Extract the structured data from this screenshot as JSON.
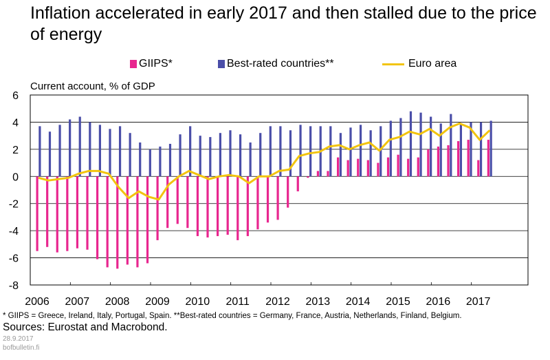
{
  "title": "Inflation accelerated in early 2017 and then stalled due to the price of energy",
  "footnote": "* GIIPS = Greece, Ireland, Italy, Portugal, Spain. **Best-rated countries = Germany, France, Austria, Netherlands, Finland, Belgium.",
  "sources": "Sources: Eurostat and Macrobond.",
  "date": "28.9.2017",
  "site": "bofbulletin.fi",
  "colors": {
    "giips": "#e8268f",
    "best": "#4a4ea8",
    "euro": "#f2c40e"
  },
  "chart_data": {
    "type": "bar",
    "title": "Inflation accelerated in early 2017 and then stalled due to the price of energy",
    "ylabel": "Current account, % of GDP",
    "xlabel": "",
    "ylim": [
      -8,
      6
    ],
    "yticks": [
      6,
      4,
      2,
      0,
      -2,
      -4,
      -6,
      -8
    ],
    "xlim": [
      2006.0,
      2018.0
    ],
    "xticks": [
      "2006",
      "2007",
      "2008",
      "2009",
      "2010",
      "2011",
      "2012",
      "2013",
      "2014",
      "2015",
      "2016",
      "2017"
    ],
    "grid": "horizontal",
    "legend": "top",
    "series": [
      {
        "name": "GIIPS*",
        "type": "bar",
        "x": [
          2006.0,
          2006.25,
          2006.5,
          2006.75,
          2007.0,
          2007.25,
          2007.5,
          2007.75,
          2008.0,
          2008.25,
          2008.5,
          2008.75,
          2009.0,
          2009.25,
          2009.5,
          2009.75,
          2010.0,
          2010.25,
          2010.5,
          2010.75,
          2011.0,
          2011.25,
          2011.5,
          2011.75,
          2012.0,
          2012.25,
          2012.5,
          2012.75,
          2013.0,
          2013.25,
          2013.5,
          2013.75,
          2014.0,
          2014.25,
          2014.5,
          2014.75,
          2015.0,
          2015.25,
          2015.5,
          2015.75,
          2016.0,
          2016.25,
          2016.5,
          2016.75,
          2017.0,
          2017.25
        ],
        "values": [
          -5.5,
          -5.2,
          -5.6,
          -5.5,
          -5.3,
          -5.4,
          -6.1,
          -6.7,
          -6.8,
          -6.5,
          -6.7,
          -6.4,
          -4.7,
          -3.8,
          -3.5,
          -3.8,
          -4.4,
          -4.5,
          -4.4,
          -4.3,
          -4.7,
          -4.4,
          -3.9,
          -3.4,
          -3.2,
          -2.3,
          -1.1,
          -0.1,
          0.4,
          0.4,
          1.4,
          1.2,
          1.3,
          1.2,
          1.0,
          1.4,
          1.6,
          1.3,
          1.4,
          2.0,
          2.2,
          2.3,
          2.6,
          2.7,
          1.2,
          2.7
        ]
      },
      {
        "name": "Best-rated countries**",
        "type": "bar",
        "x": [
          2006.0,
          2006.25,
          2006.5,
          2006.75,
          2007.0,
          2007.25,
          2007.5,
          2007.75,
          2008.0,
          2008.25,
          2008.5,
          2008.75,
          2009.0,
          2009.25,
          2009.5,
          2009.75,
          2010.0,
          2010.25,
          2010.5,
          2010.75,
          2011.0,
          2011.25,
          2011.5,
          2011.75,
          2012.0,
          2012.25,
          2012.5,
          2012.75,
          2013.0,
          2013.25,
          2013.5,
          2013.75,
          2014.0,
          2014.25,
          2014.5,
          2014.75,
          2015.0,
          2015.25,
          2015.5,
          2015.75,
          2016.0,
          2016.25,
          2016.5,
          2016.75,
          2017.0,
          2017.25
        ],
        "values": [
          3.7,
          3.3,
          3.8,
          4.2,
          4.4,
          4.0,
          3.8,
          3.5,
          3.7,
          3.2,
          2.5,
          2.0,
          2.2,
          2.4,
          3.1,
          3.7,
          3.0,
          2.9,
          3.2,
          3.4,
          3.1,
          2.5,
          3.2,
          3.7,
          3.7,
          3.4,
          3.8,
          3.7,
          3.7,
          3.7,
          3.2,
          3.6,
          3.8,
          3.4,
          3.7,
          4.1,
          4.3,
          4.8,
          4.7,
          4.4,
          3.9,
          4.6,
          3.9,
          4.0,
          4.0,
          4.1
        ]
      },
      {
        "name": "Euro area",
        "type": "line",
        "x": [
          2006.0,
          2006.25,
          2006.5,
          2006.75,
          2007.0,
          2007.25,
          2007.5,
          2007.75,
          2008.0,
          2008.25,
          2008.5,
          2008.75,
          2009.0,
          2009.25,
          2009.5,
          2009.75,
          2010.0,
          2010.25,
          2010.5,
          2010.75,
          2011.0,
          2011.25,
          2011.5,
          2011.75,
          2012.0,
          2012.25,
          2012.5,
          2012.75,
          2013.0,
          2013.25,
          2013.5,
          2013.75,
          2014.0,
          2014.25,
          2014.5,
          2014.75,
          2015.0,
          2015.25,
          2015.5,
          2015.75,
          2016.0,
          2016.25,
          2016.5,
          2016.75,
          2017.0,
          2017.25
        ],
        "values": [
          -0.1,
          -0.3,
          -0.2,
          -0.1,
          0.2,
          0.4,
          0.4,
          0.2,
          -0.8,
          -1.6,
          -1.1,
          -1.5,
          -1.7,
          -0.6,
          0.0,
          0.4,
          0.1,
          -0.2,
          0.0,
          0.1,
          0.0,
          -0.5,
          0.0,
          0.0,
          0.4,
          0.5,
          1.5,
          1.7,
          1.8,
          2.2,
          2.3,
          2.0,
          2.3,
          2.5,
          1.9,
          2.7,
          2.9,
          3.3,
          3.1,
          3.5,
          3.0,
          3.6,
          3.9,
          3.6,
          2.7,
          3.4
        ]
      }
    ]
  }
}
